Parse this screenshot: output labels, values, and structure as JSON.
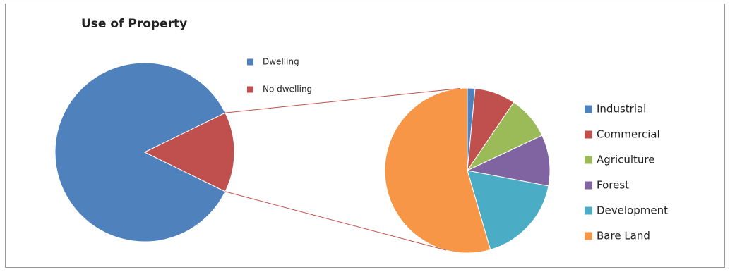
{
  "chart_data": [
    {
      "type": "pie",
      "title": "Use of Property",
      "categories": [
        "Dwelling",
        "No dwelling"
      ],
      "values": [
        85.5,
        14.5
      ],
      "colors": [
        "#4f81bd",
        "#c0504d"
      ]
    },
    {
      "type": "pie",
      "categories": [
        "Industrial",
        "Commercial",
        "Agriculture",
        "Forest",
        "Development",
        "Bare Land"
      ],
      "values": [
        1.5,
        8,
        8.5,
        10,
        17.5,
        54.5
      ],
      "colors": [
        "#4f81bd",
        "#c0504d",
        "#9bbb59",
        "#8064a2",
        "#4bacc6",
        "#f79646"
      ]
    }
  ]
}
